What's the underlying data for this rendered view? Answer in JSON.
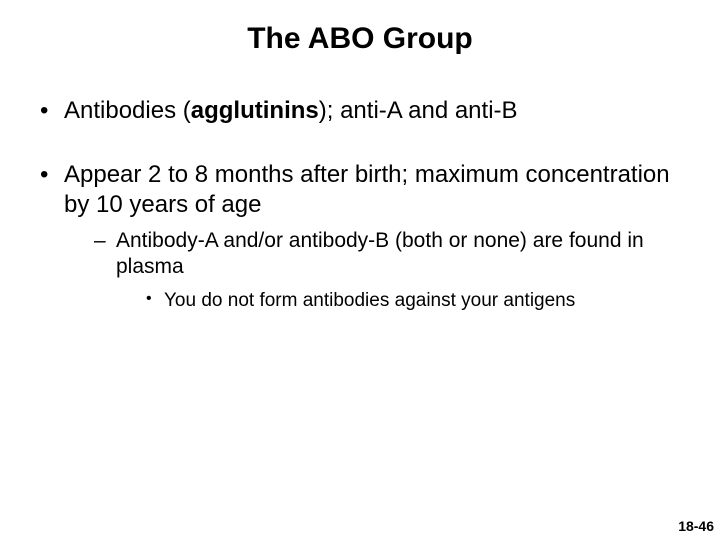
{
  "title": "The ABO Group",
  "bullets": [
    {
      "prefix": "Antibodies (",
      "bold": "agglutinins",
      "suffix": "); anti-A and anti-B"
    },
    {
      "text": "Appear 2 to 8 months after birth; maximum concentration by 10 years of age",
      "sub": [
        {
          "text": "Antibody-A and/or antibody-B (both or none) are found in plasma",
          "sub": [
            {
              "text": "You do not form antibodies against your antigens"
            }
          ]
        }
      ]
    }
  ],
  "footer": "18-46",
  "colors": {
    "background": "#ffffff",
    "text": "#000000"
  },
  "fonts": {
    "title_size": 30,
    "lvl1_size": 24,
    "lvl2_size": 21,
    "lvl3_size": 19,
    "footer_size": 14
  }
}
